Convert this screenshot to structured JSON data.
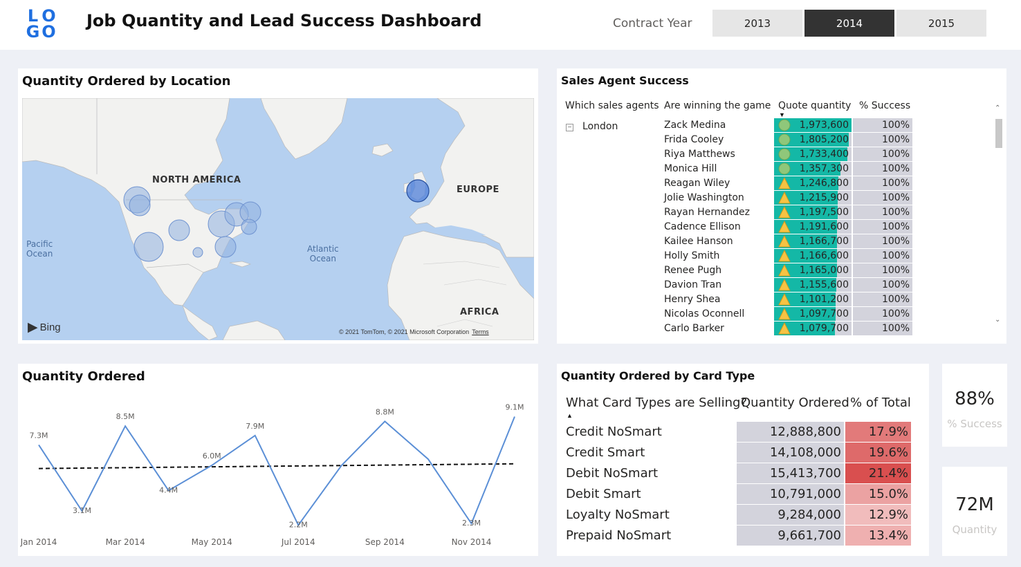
{
  "header": {
    "logo_letters": [
      "L",
      "O",
      "G",
      "O"
    ],
    "title": "Job Quantity and Lead Success Dashboard",
    "slicer_label": "Contract Year",
    "years": [
      {
        "label": "2013",
        "selected": false
      },
      {
        "label": "2014",
        "selected": true
      },
      {
        "label": "2015",
        "selected": false
      }
    ]
  },
  "map_card": {
    "title": "Quantity Ordered by Location",
    "continents": {
      "north_america": "NORTH AMERICA",
      "europe": "EUROPE",
      "africa": "AFRICA"
    },
    "oceans": {
      "pacific": "Pacific\nOcean",
      "atlantic": "Atlantic\nOcean"
    },
    "bing_label": "Bing",
    "copyright": "© 2021 TomTom, © 2021 Microsoft Corporation",
    "terms_label": "Terms"
  },
  "sales_agents": {
    "title": "Sales Agent Success",
    "columns": [
      "Which sales agents",
      "Are winning the game",
      "Quote quantity",
      "% Success"
    ],
    "region": "London",
    "rows": [
      {
        "name": "Zack Medina",
        "quantity": "1,973,600",
        "qty": 1973600,
        "success": "100%",
        "indicator": "circle"
      },
      {
        "name": "Frida Cooley",
        "quantity": "1,805,200",
        "qty": 1805200,
        "success": "100%",
        "indicator": "circle"
      },
      {
        "name": "Riya Matthews",
        "quantity": "1,733,400",
        "qty": 1733400,
        "success": "100%",
        "indicator": "circle"
      },
      {
        "name": "Monica Hill",
        "quantity": "1,357,300",
        "qty": 1357300,
        "success": "100%",
        "indicator": "circle"
      },
      {
        "name": "Reagan Wiley",
        "quantity": "1,246,800",
        "qty": 1246800,
        "success": "100%",
        "indicator": "triangle"
      },
      {
        "name": "Jolie Washington",
        "quantity": "1,215,900",
        "qty": 1215900,
        "success": "100%",
        "indicator": "triangle"
      },
      {
        "name": "Rayan Hernandez",
        "quantity": "1,197,500",
        "qty": 1197500,
        "success": "100%",
        "indicator": "triangle"
      },
      {
        "name": "Cadence Ellison",
        "quantity": "1,191,600",
        "qty": 1191600,
        "success": "100%",
        "indicator": "triangle"
      },
      {
        "name": "Kailee Hanson",
        "quantity": "1,166,700",
        "qty": 1166700,
        "success": "100%",
        "indicator": "triangle"
      },
      {
        "name": "Holly Smith",
        "quantity": "1,166,600",
        "qty": 1166600,
        "success": "100%",
        "indicator": "triangle"
      },
      {
        "name": "Renee Pugh",
        "quantity": "1,165,000",
        "qty": 1165000,
        "success": "100%",
        "indicator": "triangle"
      },
      {
        "name": "Davion Tran",
        "quantity": "1,155,600",
        "qty": 1155600,
        "success": "100%",
        "indicator": "triangle"
      },
      {
        "name": "Henry Shea",
        "quantity": "1,101,200",
        "qty": 1101200,
        "success": "100%",
        "indicator": "triangle"
      },
      {
        "name": "Nicolas Oconnell",
        "quantity": "1,097,700",
        "qty": 1097700,
        "success": "100%",
        "indicator": "triangle"
      },
      {
        "name": "Carlo Barker",
        "quantity": "1,079,700",
        "qty": 1079700,
        "success": "100%",
        "indicator": "triangle"
      }
    ]
  },
  "chart_data": {
    "type": "line",
    "title": "Quantity Ordered",
    "x": [
      "Jan 2014",
      "Feb 2014",
      "Mar 2014",
      "Apr 2014",
      "May 2014",
      "Jun 2014",
      "Jul 2014",
      "Aug 2014",
      "Sep 2014",
      "Oct 2014",
      "Nov 2014",
      "Dec 2014"
    ],
    "x_tick_labels": [
      "Jan 2014",
      "Mar 2014",
      "May 2014",
      "Jul 2014",
      "Sep 2014",
      "Nov 2014"
    ],
    "values": [
      7.3,
      3.1,
      8.5,
      4.4,
      6.0,
      7.9,
      2.2,
      6.0,
      8.8,
      6.4,
      2.3,
      9.1
    ],
    "data_labels": [
      "7.3M",
      "3.1M",
      "8.5M",
      "4.4M",
      "6.0M",
      "7.9M",
      "2.2M",
      "",
      "8.8M",
      "",
      "2.3M",
      "9.1M"
    ],
    "trendline": [
      5.8,
      6.1
    ],
    "ylim": [
      2.0,
      9.3
    ],
    "line_color": "#5b8fd6"
  },
  "card_types": {
    "title": "Quantity Ordered by Card Type",
    "columns": [
      "What Card Types are Selling?",
      "Quantity Ordered",
      "% of Total"
    ],
    "rows": [
      {
        "name": "Credit NoSmart",
        "quantity": "12,888,800",
        "pct": "17.9%",
        "color": "#e27a7a"
      },
      {
        "name": "Credit Smart",
        "quantity": "14,108,000",
        "pct": "19.6%",
        "color": "#de6a6a"
      },
      {
        "name": "Debit NoSmart",
        "quantity": "15,413,700",
        "pct": "21.4%",
        "color": "#d94f4f"
      },
      {
        "name": "Debit Smart",
        "quantity": "10,791,000",
        "pct": "15.0%",
        "color": "#eba2a2"
      },
      {
        "name": "Loyalty NoSmart",
        "quantity": "9,284,000",
        "pct": "12.9%",
        "color": "#f1bcbc"
      },
      {
        "name": "Prepaid NoSmart",
        "quantity": "9,661,700",
        "pct": "13.4%",
        "color": "#efb0b0"
      }
    ]
  },
  "kpis": {
    "success": {
      "value": "88%",
      "label": "% Success"
    },
    "quantity": {
      "value": "72M",
      "label": "Quantity"
    }
  }
}
